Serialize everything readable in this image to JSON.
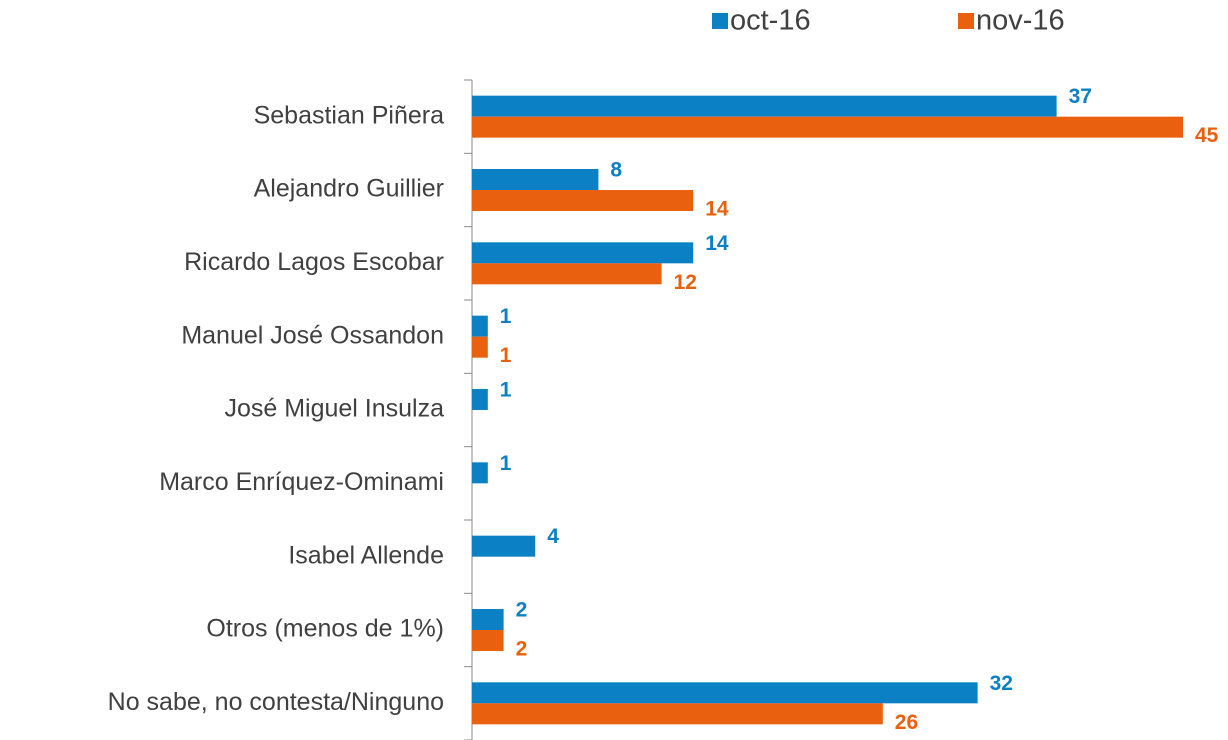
{
  "chart_data": {
    "type": "hbar",
    "categories": [
      "Sebastian Piñera",
      "Alejandro Guillier",
      "Ricardo Lagos Escobar",
      "Manuel José Ossandon",
      "José Miguel Insulza",
      "Marco Enríquez-Ominami",
      "Isabel Allende",
      "Otros (menos de 1%)",
      "No sabe, no contesta/Ninguno"
    ],
    "series": [
      {
        "name": "oct-16",
        "color": "#0b80c4",
        "values": [
          37,
          8,
          14,
          1,
          1,
          1,
          4,
          2,
          32
        ]
      },
      {
        "name": "nov-16",
        "color": "#e9600f",
        "values": [
          45,
          14,
          12,
          1,
          null,
          null,
          null,
          2,
          26
        ]
      }
    ],
    "xlim": [
      0,
      45
    ],
    "legend": "top"
  }
}
